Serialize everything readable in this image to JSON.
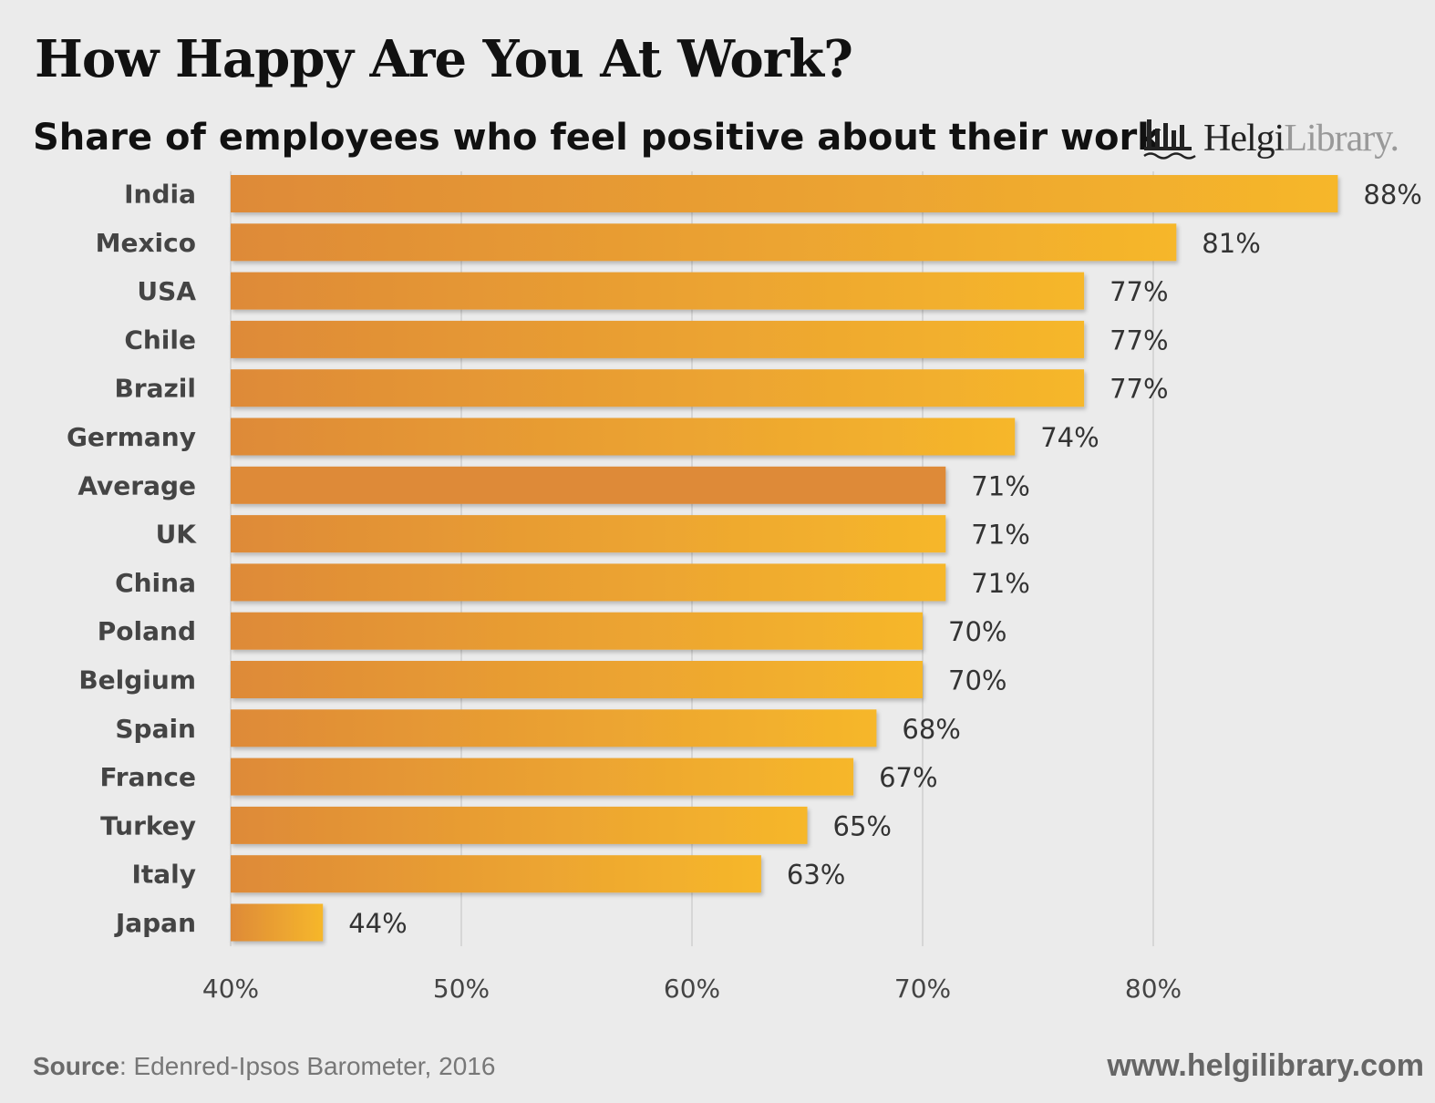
{
  "chart_data": {
    "type": "bar",
    "orientation": "horizontal",
    "title": "How Happy Are You At Work?",
    "subtitle": "Share of employees who feel positive about their work",
    "categories": [
      "India",
      "Mexico",
      "USA",
      "Chile",
      "Brazil",
      "Germany",
      "Average",
      "UK",
      "China",
      "Poland",
      "Belgium",
      "Spain",
      "France",
      "Turkey",
      "Italy",
      "Japan"
    ],
    "values": [
      88,
      81,
      77,
      77,
      77,
      74,
      71,
      71,
      71,
      70,
      70,
      68,
      67,
      65,
      63,
      44
    ],
    "value_labels": [
      "88%",
      "81%",
      "77%",
      "77%",
      "77%",
      "74%",
      "71%",
      "71%",
      "71%",
      "70%",
      "70%",
      "68%",
      "67%",
      "65%",
      "63%",
      "44%"
    ],
    "highlight_category": "Average",
    "xlim": [
      40,
      88
    ],
    "xticks": [
      40,
      50,
      60,
      70,
      80
    ],
    "xtick_labels": [
      "40%",
      "50%",
      "60%",
      "70%",
      "80%"
    ],
    "grid": true,
    "colors": {
      "bar_start": "#de8a38",
      "bar_end": "#f6b72b",
      "bar_highlight": "#de8a38",
      "grid": "#cfcfcf",
      "label": "#444444",
      "value": "#333333"
    }
  },
  "logo": {
    "name": "Helgi",
    "suffix": "Library.",
    "icon": "library-building-icon"
  },
  "footer": {
    "source_label": "Source",
    "source_text": ": Edenred-Ipsos Barometer, 2016",
    "url": "www.helgilibrary.com"
  }
}
